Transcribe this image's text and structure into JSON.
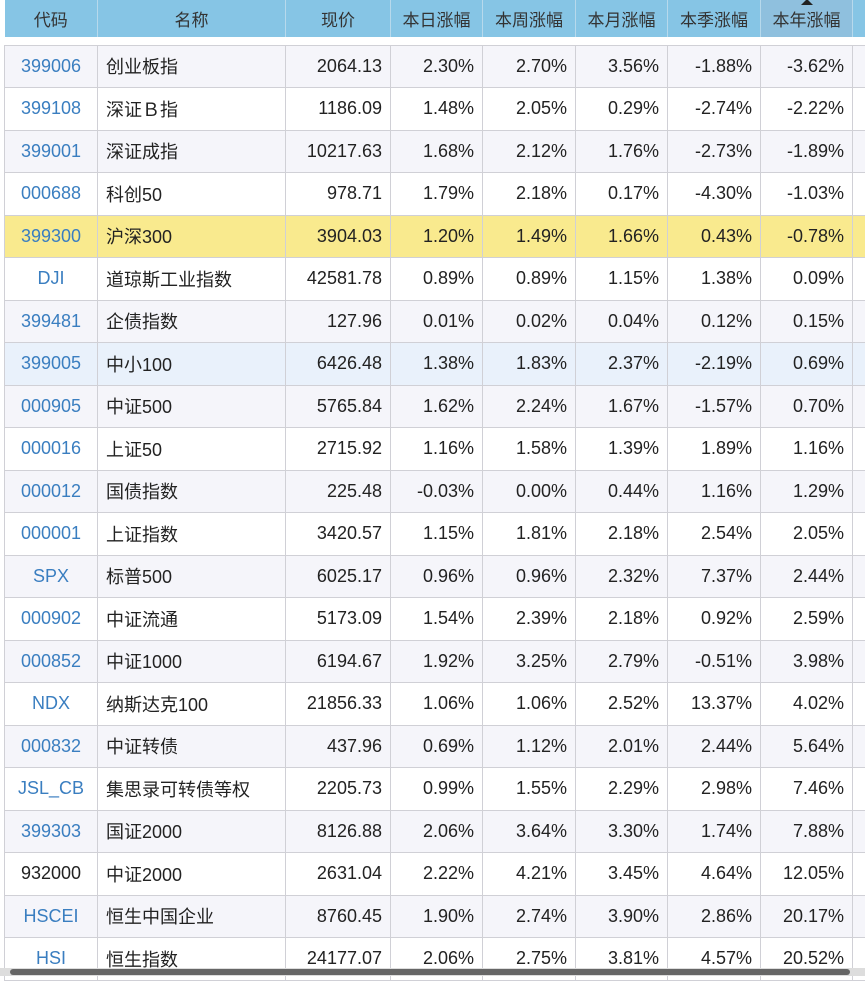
{
  "headers": [
    "代码",
    "名称",
    "现价",
    "本日涨幅",
    "本周涨幅",
    "本月涨幅",
    "本季涨幅",
    "本年涨幅"
  ],
  "sorted_column": "本年涨幅",
  "rows": [
    [
      "399006",
      "创业板指",
      "2064.13",
      "2.30%",
      "2.70%",
      "3.56%",
      "-1.88%",
      "-3.62%"
    ],
    [
      "399108",
      "深证Ｂ指",
      "1186.09",
      "1.48%",
      "2.05%",
      "0.29%",
      "-2.74%",
      "-2.22%"
    ],
    [
      "399001",
      "深证成指",
      "10217.63",
      "1.68%",
      "2.12%",
      "1.76%",
      "-2.73%",
      "-1.89%"
    ],
    [
      "000688",
      "科创50",
      "978.71",
      "1.79%",
      "2.18%",
      "0.17%",
      "-4.30%",
      "-1.03%"
    ],
    [
      "399300",
      "沪深300",
      "3904.03",
      "1.20%",
      "1.49%",
      "1.66%",
      "0.43%",
      "-0.78%"
    ],
    [
      "DJI",
      "道琼斯工业指数",
      "42581.78",
      "0.89%",
      "0.89%",
      "1.15%",
      "1.38%",
      "0.09%"
    ],
    [
      "399481",
      "企债指数",
      "127.96",
      "0.01%",
      "0.02%",
      "0.04%",
      "0.12%",
      "0.15%"
    ],
    [
      "399005",
      "中小100",
      "6426.48",
      "1.38%",
      "1.83%",
      "2.37%",
      "-2.19%",
      "0.69%"
    ],
    [
      "000905",
      "中证500",
      "5765.84",
      "1.62%",
      "2.24%",
      "1.67%",
      "-1.57%",
      "0.70%"
    ],
    [
      "000016",
      "上证50",
      "2715.92",
      "1.16%",
      "1.58%",
      "1.39%",
      "1.89%",
      "1.16%"
    ],
    [
      "000012",
      "国债指数",
      "225.48",
      "-0.03%",
      "0.00%",
      "0.44%",
      "1.16%",
      "1.29%"
    ],
    [
      "000001",
      "上证指数",
      "3420.57",
      "1.15%",
      "1.81%",
      "2.18%",
      "2.54%",
      "2.05%"
    ],
    [
      "SPX",
      "标普500",
      "6025.17",
      "0.96%",
      "0.96%",
      "2.32%",
      "7.37%",
      "2.44%"
    ],
    [
      "000902",
      "中证流通",
      "5173.09",
      "1.54%",
      "2.39%",
      "2.18%",
      "0.92%",
      "2.59%"
    ],
    [
      "000852",
      "中证1000",
      "6194.67",
      "1.92%",
      "3.25%",
      "2.79%",
      "-0.51%",
      "3.98%"
    ],
    [
      "NDX",
      "纳斯达克100",
      "21856.33",
      "1.06%",
      "1.06%",
      "2.52%",
      "13.37%",
      "4.02%"
    ],
    [
      "000832",
      "中证转债",
      "437.96",
      "0.69%",
      "1.12%",
      "2.01%",
      "2.44%",
      "5.64%"
    ],
    [
      "JSL_CB",
      "集思录可转债等权",
      "2205.73",
      "0.99%",
      "1.55%",
      "2.29%",
      "2.98%",
      "7.46%"
    ],
    [
      "399303",
      "国证2000",
      "8126.88",
      "2.06%",
      "3.64%",
      "3.30%",
      "1.74%",
      "7.88%"
    ],
    [
      "932000",
      "中证2000",
      "2631.04",
      "2.22%",
      "4.21%",
      "3.45%",
      "4.64%",
      "12.05%"
    ],
    [
      "HSCEI",
      "恒生中国企业",
      "8760.45",
      "1.90%",
      "2.74%",
      "3.90%",
      "2.86%",
      "20.17%"
    ],
    [
      "HSI",
      "恒生指数",
      "24177.07",
      "2.06%",
      "2.75%",
      "3.81%",
      "4.57%",
      "20.52%"
    ]
  ],
  "highlighted_row": "399300",
  "selected_row": "399005",
  "plain_code_rows": [
    "932000"
  ]
}
